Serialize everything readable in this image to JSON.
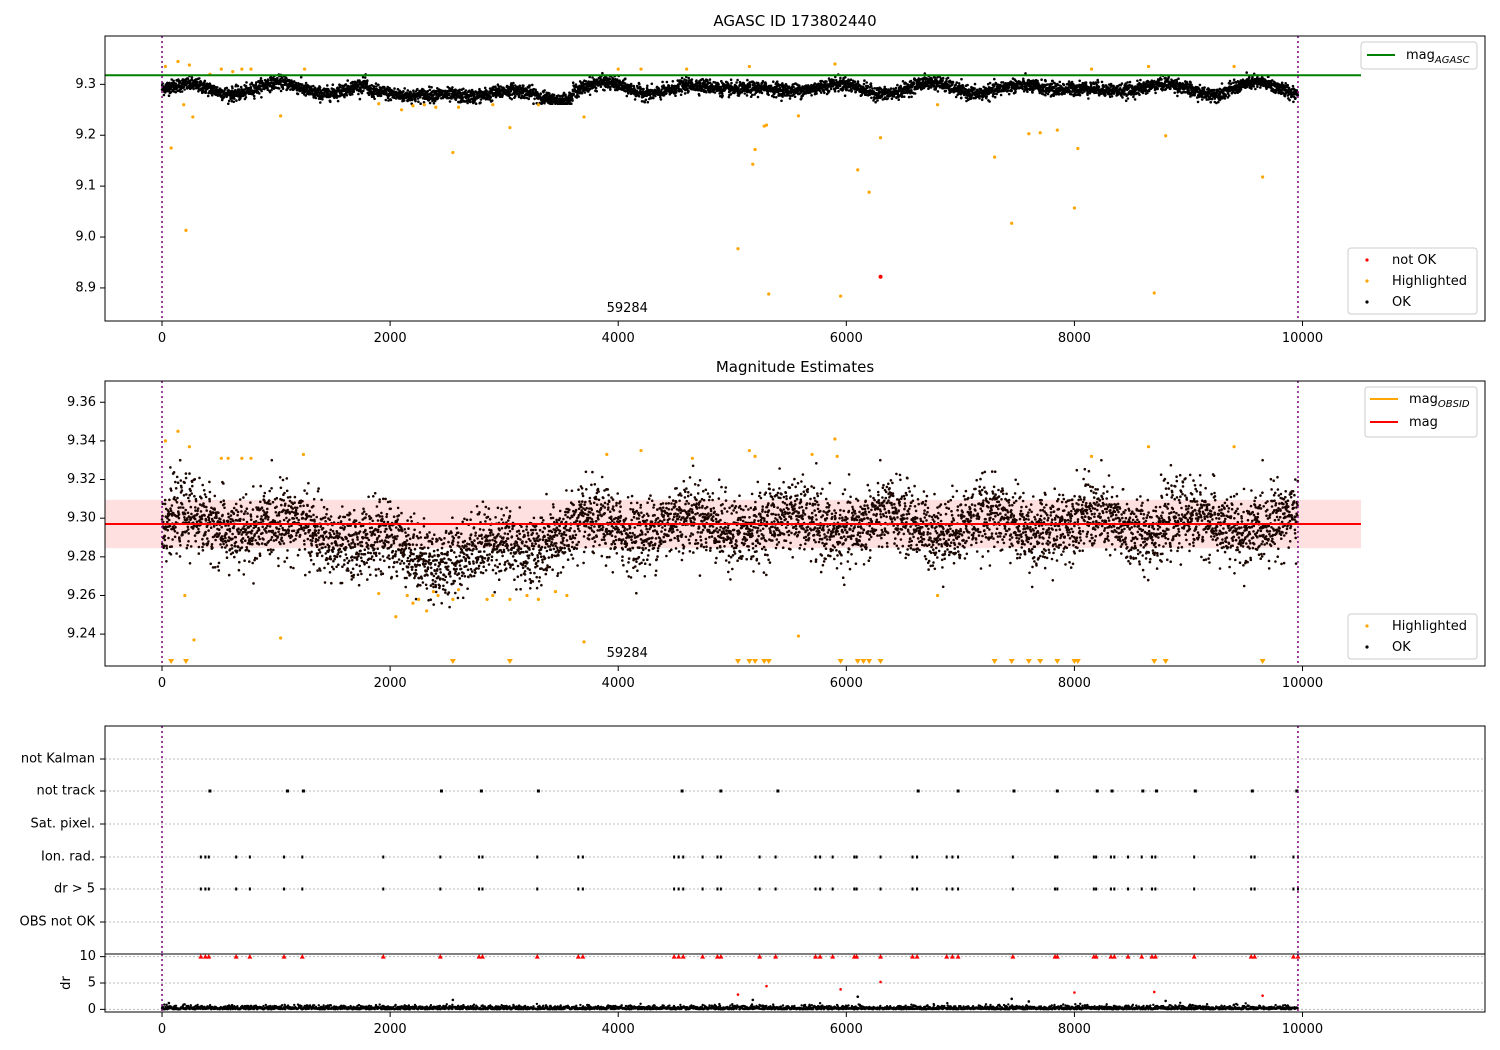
{
  "chart_data": [
    {
      "type": "scatter",
      "title": "AGASC ID 173802440",
      "x_ticks": [
        "0",
        "2000",
        "4000",
        "6000",
        "8000",
        "10000"
      ],
      "y_ticks": [
        "8.9",
        "9.0",
        "9.1",
        "9.2",
        "9.3"
      ],
      "xlim": [
        -500,
        11600
      ],
      "ylim": [
        8.835,
        9.395
      ],
      "mag_agasc": 9.318,
      "obsid_marker": {
        "label": "59284",
        "x": 5000
      },
      "vlines_x": [
        0,
        9960
      ],
      "legend_top": {
        "main": "mag",
        "sub": "AGASC",
        "color": "#008000"
      },
      "legend_bottom": [
        {
          "label": "not OK",
          "color": "#ff0000"
        },
        {
          "label": "Highlighted",
          "color": "#ffa500"
        },
        {
          "label": "OK",
          "color": "#000000"
        }
      ],
      "not_ok_points": [
        [
          6300,
          8.922
        ]
      ],
      "highlighted_points": [
        [
          30,
          9.335
        ],
        [
          80,
          9.175
        ],
        [
          140,
          9.345
        ],
        [
          190,
          9.26
        ],
        [
          210,
          9.013
        ],
        [
          240,
          9.338
        ],
        [
          270,
          9.236
        ],
        [
          420,
          9.32
        ],
        [
          520,
          9.33
        ],
        [
          620,
          9.325
        ],
        [
          700,
          9.33
        ],
        [
          780,
          9.33
        ],
        [
          1040,
          9.238
        ],
        [
          1250,
          9.33
        ],
        [
          1900,
          9.262
        ],
        [
          2100,
          9.25
        ],
        [
          2200,
          9.258
        ],
        [
          2300,
          9.26
        ],
        [
          2400,
          9.255
        ],
        [
          2550,
          9.166
        ],
        [
          2600,
          9.255
        ],
        [
          2900,
          9.26
        ],
        [
          3050,
          9.215
        ],
        [
          3300,
          9.26
        ],
        [
          3700,
          9.236
        ],
        [
          4000,
          9.33
        ],
        [
          4200,
          9.33
        ],
        [
          4600,
          9.33
        ],
        [
          5050,
          8.977
        ],
        [
          5150,
          9.335
        ],
        [
          5180,
          9.143
        ],
        [
          5200,
          9.172
        ],
        [
          5280,
          9.218
        ],
        [
          5300,
          9.22
        ],
        [
          5320,
          8.888
        ],
        [
          5580,
          9.238
        ],
        [
          5900,
          9.34
        ],
        [
          5950,
          8.884
        ],
        [
          6100,
          9.132
        ],
        [
          6200,
          9.088
        ],
        [
          6300,
          9.195
        ],
        [
          6800,
          9.26
        ],
        [
          7300,
          9.157
        ],
        [
          7450,
          9.027
        ],
        [
          7600,
          9.203
        ],
        [
          7700,
          9.205
        ],
        [
          7850,
          9.21
        ],
        [
          8000,
          9.057
        ],
        [
          8030,
          9.174
        ],
        [
          8150,
          9.33
        ],
        [
          8650,
          9.335
        ],
        [
          8700,
          8.89
        ],
        [
          8800,
          9.199
        ],
        [
          9400,
          9.335
        ],
        [
          9650,
          9.118
        ]
      ],
      "ok_band": {
        "x_start": 0,
        "x_end": 9960,
        "mean": 9.292,
        "amplitude": 0.012,
        "spread": 0.011,
        "count": 6000
      }
    },
    {
      "type": "scatter",
      "title": "Magnitude Estimates",
      "x_ticks": [
        "0",
        "2000",
        "4000",
        "6000",
        "8000",
        "10000"
      ],
      "y_ticks": [
        "9.24",
        "9.26",
        "9.28",
        "9.30",
        "9.32",
        "9.34",
        "9.36"
      ],
      "xlim": [
        -500,
        11600
      ],
      "ylim": [
        9.2235,
        9.371
      ],
      "mag": 9.297,
      "band": [
        9.2845,
        9.3095
      ],
      "obsid_marker": {
        "label": "59284",
        "x": 5000
      },
      "vlines_x": [
        0,
        9960
      ],
      "legend_top": [
        {
          "main": "mag",
          "sub": "OBSID",
          "color": "#ffa500"
        },
        {
          "main": "mag",
          "sub": "",
          "color": "#ff0000"
        }
      ],
      "legend_bottom": [
        {
          "label": "Highlighted",
          "color": "#ffa500"
        },
        {
          "label": "OK",
          "color": "#000000"
        }
      ],
      "highlighted_points": [
        [
          30,
          9.34
        ],
        [
          140,
          9.345
        ],
        [
          200,
          9.26
        ],
        [
          240,
          9.337
        ],
        [
          280,
          9.237
        ],
        [
          520,
          9.331
        ],
        [
          580,
          9.331
        ],
        [
          700,
          9.331
        ],
        [
          780,
          9.331
        ],
        [
          1040,
          9.238
        ],
        [
          1240,
          9.333
        ],
        [
          1900,
          9.261
        ],
        [
          2050,
          9.249
        ],
        [
          2150,
          9.26
        ],
        [
          2200,
          9.256
        ],
        [
          2250,
          9.258
        ],
        [
          2320,
          9.252
        ],
        [
          2380,
          9.262
        ],
        [
          2420,
          9.26
        ],
        [
          2550,
          9.258
        ],
        [
          2600,
          9.263
        ],
        [
          2850,
          9.258
        ],
        [
          2900,
          9.26
        ],
        [
          3050,
          9.258
        ],
        [
          3200,
          9.26
        ],
        [
          3300,
          9.258
        ],
        [
          3450,
          9.262
        ],
        [
          3550,
          9.26
        ],
        [
          3700,
          9.236
        ],
        [
          3900,
          9.333
        ],
        [
          4200,
          9.335
        ],
        [
          4650,
          9.331
        ],
        [
          5150,
          9.335
        ],
        [
          5200,
          9.332
        ],
        [
          5580,
          9.239
        ],
        [
          5700,
          9.333
        ],
        [
          5900,
          9.341
        ],
        [
          5920,
          9.332
        ],
        [
          6800,
          9.26
        ],
        [
          8150,
          9.332
        ],
        [
          8650,
          9.337
        ],
        [
          9400,
          9.337
        ]
      ],
      "triangles_x": [
        80,
        210,
        2550,
        3050,
        5050,
        5150,
        5200,
        5280,
        5320,
        5950,
        6100,
        6150,
        6200,
        6300,
        7300,
        7450,
        7600,
        7700,
        7850,
        8000,
        8030,
        8700,
        8800,
        9650
      ],
      "ok_band": {
        "x_start": 0,
        "x_end": 9960,
        "mean": 9.297,
        "dip_center": 2500,
        "dip_depth": 0.016,
        "dip_width": 1000,
        "spread": 0.009,
        "count": 6000
      }
    },
    {
      "type": "scatter",
      "title": "",
      "categories": [
        "not Kalman",
        "not track",
        "Sat. pixel.",
        "Ion. rad.",
        "dr > 5",
        "OBS not OK"
      ],
      "x_ticks": [
        "0",
        "2000",
        "4000",
        "6000",
        "8000",
        "10000"
      ],
      "xlim": [
        -500,
        11600
      ],
      "vlines_x": [
        0,
        9960
      ],
      "not_track_x": [
        420,
        1100,
        1240,
        2450,
        2800,
        3300,
        4560,
        4900,
        5400,
        6630,
        6980,
        7470,
        7850,
        8200,
        8330,
        8600,
        8720,
        9060,
        9560,
        9950
      ],
      "ion_rad_x": [
        340,
        380,
        410,
        650,
        770,
        1070,
        1230,
        1940,
        2440,
        2780,
        2810,
        3290,
        3650,
        3690,
        4490,
        4530,
        4570,
        4740,
        4870,
        4900,
        5240,
        5380,
        5730,
        5770,
        5880,
        6070,
        6090,
        6300,
        6580,
        6620,
        6880,
        6930,
        6980,
        7460,
        7830,
        7850,
        8170,
        8190,
        8320,
        8350,
        8470,
        8590,
        8680,
        8710,
        9050,
        9550,
        9580,
        9920,
        9960
      ],
      "dr_ylabel": "dr",
      "dr_ticks": [
        "0",
        "5",
        "10"
      ],
      "dr_ylim": [
        -0.5,
        10.5
      ],
      "dr_outliers": [
        [
          60,
          1.2
        ],
        [
          2550,
          1.8
        ],
        [
          5050,
          2.8
        ],
        [
          5180,
          1.8
        ],
        [
          5300,
          4.4
        ],
        [
          5950,
          3.8
        ],
        [
          6100,
          2.4
        ],
        [
          6300,
          5.2
        ],
        [
          7450,
          2.0
        ],
        [
          7600,
          1.5
        ],
        [
          8000,
          3.2
        ],
        [
          8700,
          3.3
        ],
        [
          8800,
          1.6
        ],
        [
          9650,
          2.6
        ]
      ]
    }
  ]
}
